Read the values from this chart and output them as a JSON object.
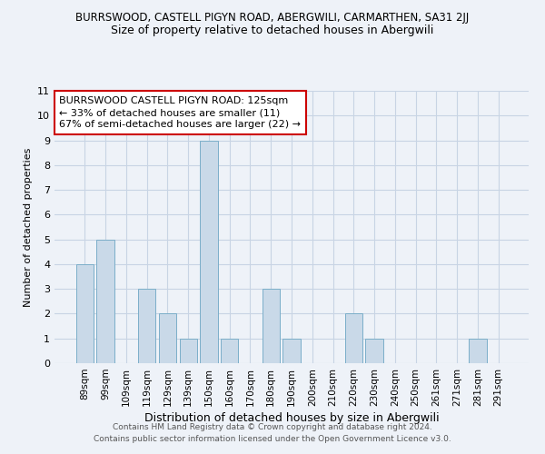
{
  "title": "BURRSWOOD, CASTELL PIGYN ROAD, ABERGWILI, CARMARTHEN, SA31 2JJ",
  "subtitle": "Size of property relative to detached houses in Abergwili",
  "xlabel": "Distribution of detached houses by size in Abergwili",
  "ylabel": "Number of detached properties",
  "footer_line1": "Contains HM Land Registry data © Crown copyright and database right 2024.",
  "footer_line2": "Contains public sector information licensed under the Open Government Licence v3.0.",
  "categories": [
    "89sqm",
    "99sqm",
    "109sqm",
    "119sqm",
    "129sqm",
    "139sqm",
    "150sqm",
    "160sqm",
    "170sqm",
    "180sqm",
    "190sqm",
    "200sqm",
    "210sqm",
    "220sqm",
    "230sqm",
    "240sqm",
    "250sqm",
    "261sqm",
    "271sqm",
    "281sqm",
    "291sqm"
  ],
  "values": [
    4,
    5,
    0,
    3,
    2,
    1,
    9,
    1,
    0,
    3,
    1,
    0,
    0,
    2,
    1,
    0,
    0,
    0,
    0,
    1,
    0
  ],
  "bar_color": "#c9d9e8",
  "bar_edge_color": "#7baec9",
  "ylim": [
    0,
    11
  ],
  "yticks": [
    0,
    1,
    2,
    3,
    4,
    5,
    6,
    7,
    8,
    9,
    10,
    11
  ],
  "annotation_box_text": "BURRSWOOD CASTELL PIGYN ROAD: 125sqm\n← 33% of detached houses are smaller (11)\n67% of semi-detached houses are larger (22) →",
  "annotation_box_color": "#ffffff",
  "annotation_box_edge_color": "#cc0000",
  "grid_color": "#c8d4e4",
  "bg_color": "#eef2f8",
  "title_fontsize": 8.5,
  "subtitle_fontsize": 9,
  "xlabel_fontsize": 9,
  "ylabel_fontsize": 8,
  "tick_fontsize": 7.5,
  "ytick_fontsize": 8,
  "footer_fontsize": 6.5,
  "annot_fontsize": 8
}
